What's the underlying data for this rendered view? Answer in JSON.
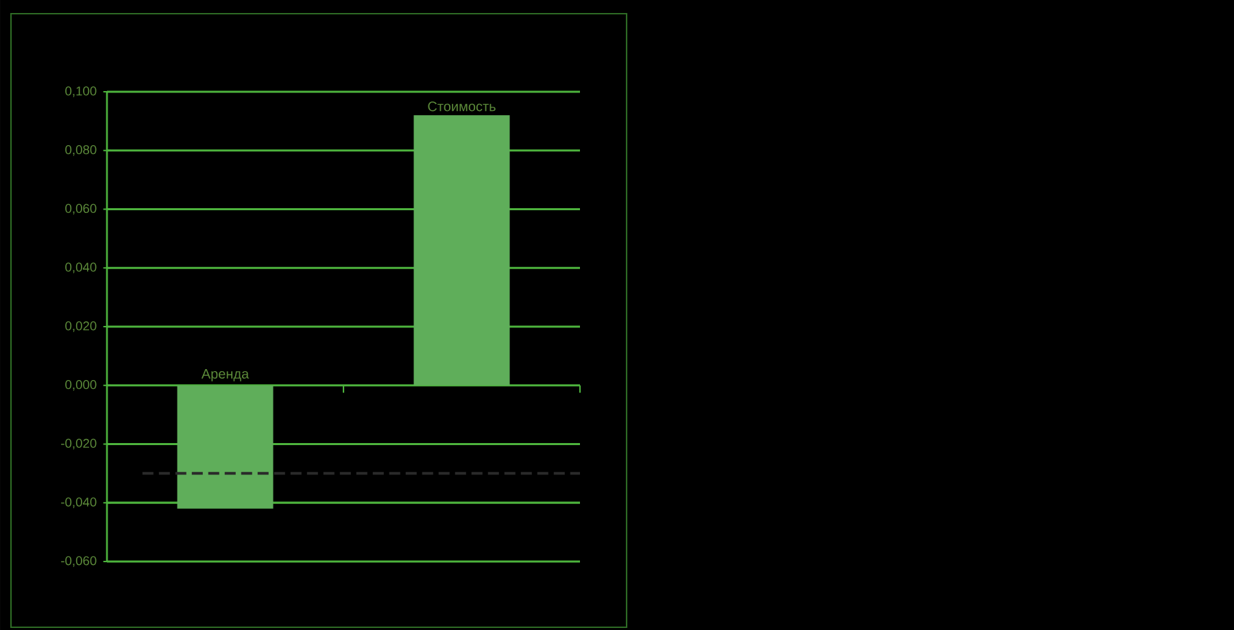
{
  "chart_data": {
    "type": "bar",
    "categories": [
      "Аренда",
      "Стоимость"
    ],
    "values": [
      -0.042,
      0.092
    ],
    "color": "#5fae5a",
    "ylim": [
      -0.06,
      0.1
    ],
    "yticks": [
      {
        "value": -0.06,
        "label": "-0,060"
      },
      {
        "value": -0.04,
        "label": "-0,040"
      },
      {
        "value": -0.02,
        "label": "-0,020"
      },
      {
        "value": 0,
        "label": "0,000"
      },
      {
        "value": 0.02,
        "label": "0,020"
      },
      {
        "value": 0.04,
        "label": "0,040"
      },
      {
        "value": 0.06,
        "label": "0,060"
      },
      {
        "value": 0.08,
        "label": "0,080"
      },
      {
        "value": 0.1,
        "label": "0,100"
      }
    ],
    "grid": "y",
    "ref_lines": [
      {
        "axis": "y",
        "value": -0.03,
        "color": "#2a2a2a",
        "line_style": "dashed"
      }
    ]
  }
}
